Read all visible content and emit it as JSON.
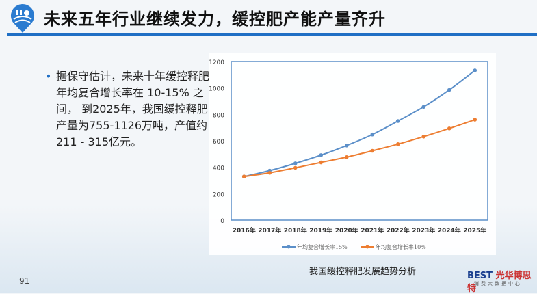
{
  "header": {
    "title": "未来五年行业继续发力，缓控肥产能产量齐升"
  },
  "bullet": {
    "text": "据保守估计，未来十年缓控释肥年均复合增长率在 10-15% 之间， 到2025年，我国缓控释肥产量为755-1126万吨，产值约211 - 315亿元。"
  },
  "caption": "我国缓控释肥发展趋势分析",
  "page_number": "91",
  "brand": {
    "name_a": "BEST",
    "name_b": "光华博思特",
    "sub": "消费大数据中心"
  },
  "colors": {
    "accent": "#1f6fc5",
    "series1": "#5b8fc9",
    "series2": "#ed7d31"
  },
  "chart_data": {
    "type": "line",
    "categories": [
      "2016年",
      "2017年",
      "2018年",
      "2019年",
      "2020年",
      "2021年",
      "2022年",
      "2023年",
      "2024年",
      "2025年"
    ],
    "yticks": [
      "0",
      "200",
      "400",
      "600",
      "800",
      "1000",
      "1200"
    ],
    "ylim": [
      0,
      1200
    ],
    "grid": false,
    "legend": "bottom",
    "series": [
      {
        "name": "年均复合增长率15%",
        "color": "#5b8fc9",
        "values": [
          330,
          375,
          430,
          492,
          565,
          648,
          750,
          857,
          985,
          1133
        ]
      },
      {
        "name": "年均复合增长率10%",
        "color": "#ed7d31",
        "values": [
          330,
          358,
          396,
          437,
          477,
          525,
          575,
          632,
          694,
          760
        ]
      }
    ]
  }
}
